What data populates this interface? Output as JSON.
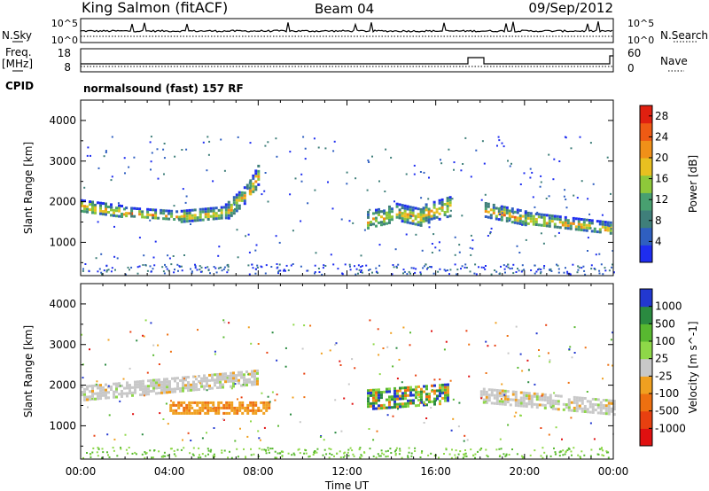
{
  "header": {
    "station": "King Salmon (fitACF)",
    "beam": "Beam 04",
    "date": "09/Sep/2012"
  },
  "top_panels": {
    "nsky_label": "N.Sky",
    "nsky_ticks": [
      "10^5",
      "10^0"
    ],
    "nsearch_label": "N.Search",
    "nsearch_ticks": [
      "10^5",
      "10^0"
    ],
    "freq_label": "Freq.",
    "freq_unit": "[MHz]",
    "freq_ticks": [
      "18",
      "8"
    ],
    "nave_label": "Nave",
    "nave_ticks": [
      "60",
      "0"
    ],
    "cpid_label": "CPID",
    "cpid_text": "normalsound (fast) 157 RF"
  },
  "chart_data": [
    {
      "type": "heatmap",
      "title": "",
      "xlabel": "Time UT",
      "ylabel": "Slant Range [km]",
      "xlim": [
        "00:00",
        "24:00"
      ],
      "x_ticks": [
        "00:00",
        "04:00",
        "08:00",
        "12:00",
        "16:00",
        "20:00",
        "00:00"
      ],
      "ylim": [
        180,
        4500
      ],
      "y_ticks": [
        1000,
        2000,
        3000,
        4000
      ],
      "grid": false,
      "colorbar": {
        "label": "Power [dB]",
        "ticks": [
          4,
          8,
          12,
          16,
          20,
          24,
          28
        ],
        "range": [
          0,
          30
        ],
        "colors": [
          "#1e2df0",
          "#2f5fc0",
          "#3f7f7a",
          "#48a070",
          "#8ec83a",
          "#e8c020",
          "#f09018",
          "#ee5a14",
          "#e02010"
        ]
      },
      "echo_bands": [
        {
          "t0": 0.0,
          "t1": 2.0,
          "r0": 1900,
          "r1": 1750,
          "w": 320
        },
        {
          "t0": 2.0,
          "t1": 4.5,
          "r0": 1750,
          "r1": 1650,
          "w": 260
        },
        {
          "t0": 4.5,
          "t1": 6.5,
          "r0": 1650,
          "r1": 1750,
          "w": 300
        },
        {
          "t0": 6.5,
          "t1": 7.6,
          "r0": 1750,
          "r1": 2300,
          "w": 420
        },
        {
          "t0": 7.6,
          "t1": 8.0,
          "r0": 2300,
          "r1": 2700,
          "w": 500
        },
        {
          "t0": 12.9,
          "t1": 14.0,
          "r0": 1550,
          "r1": 1700,
          "w": 450
        },
        {
          "t0": 14.2,
          "t1": 15.4,
          "r0": 1750,
          "r1": 1600,
          "w": 450
        },
        {
          "t0": 15.4,
          "t1": 16.6,
          "r0": 1700,
          "r1": 1900,
          "w": 480
        },
        {
          "t0": 18.2,
          "t1": 20.0,
          "r0": 1800,
          "r1": 1600,
          "w": 380
        },
        {
          "t0": 20.0,
          "t1": 23.9,
          "r0": 1600,
          "r1": 1350,
          "w": 320
        }
      ]
    },
    {
      "type": "heatmap",
      "title": "",
      "xlabel": "Time UT",
      "ylabel": "Slant Range [km]",
      "xlim": [
        "00:00",
        "24:00"
      ],
      "x_ticks": [
        "00:00",
        "04:00",
        "08:00",
        "12:00",
        "16:00",
        "20:00",
        "00:00"
      ],
      "ylim": [
        180,
        4500
      ],
      "y_ticks": [
        1000,
        2000,
        3000,
        4000
      ],
      "grid": false,
      "colorbar": {
        "label": "Velocity [m s^-1]",
        "ticks": [
          1000,
          500,
          100,
          25,
          -25,
          -100,
          -500,
          -1000
        ],
        "colors": [
          "#2238d0",
          "#2a8a40",
          "#58b830",
          "#8ed848",
          "#c8c8c8",
          "#f0a020",
          "#ee7010",
          "#e84010",
          "#e01010"
        ]
      },
      "echo_bands": [
        {
          "t0": 0.0,
          "t1": 8.0,
          "r0": 1800,
          "r1": 2200,
          "w": 380,
          "velocity": "gray"
        },
        {
          "t0": 4.0,
          "t1": 8.5,
          "r0": 1450,
          "r1": 1450,
          "w": 300,
          "velocity": "negative"
        },
        {
          "t0": 12.9,
          "t1": 16.6,
          "r0": 1650,
          "r1": 1800,
          "w": 500,
          "velocity": "mixed"
        },
        {
          "t0": 18.0,
          "t1": 24.0,
          "r0": 1750,
          "r1": 1450,
          "w": 380,
          "velocity": "gray"
        }
      ]
    }
  ]
}
